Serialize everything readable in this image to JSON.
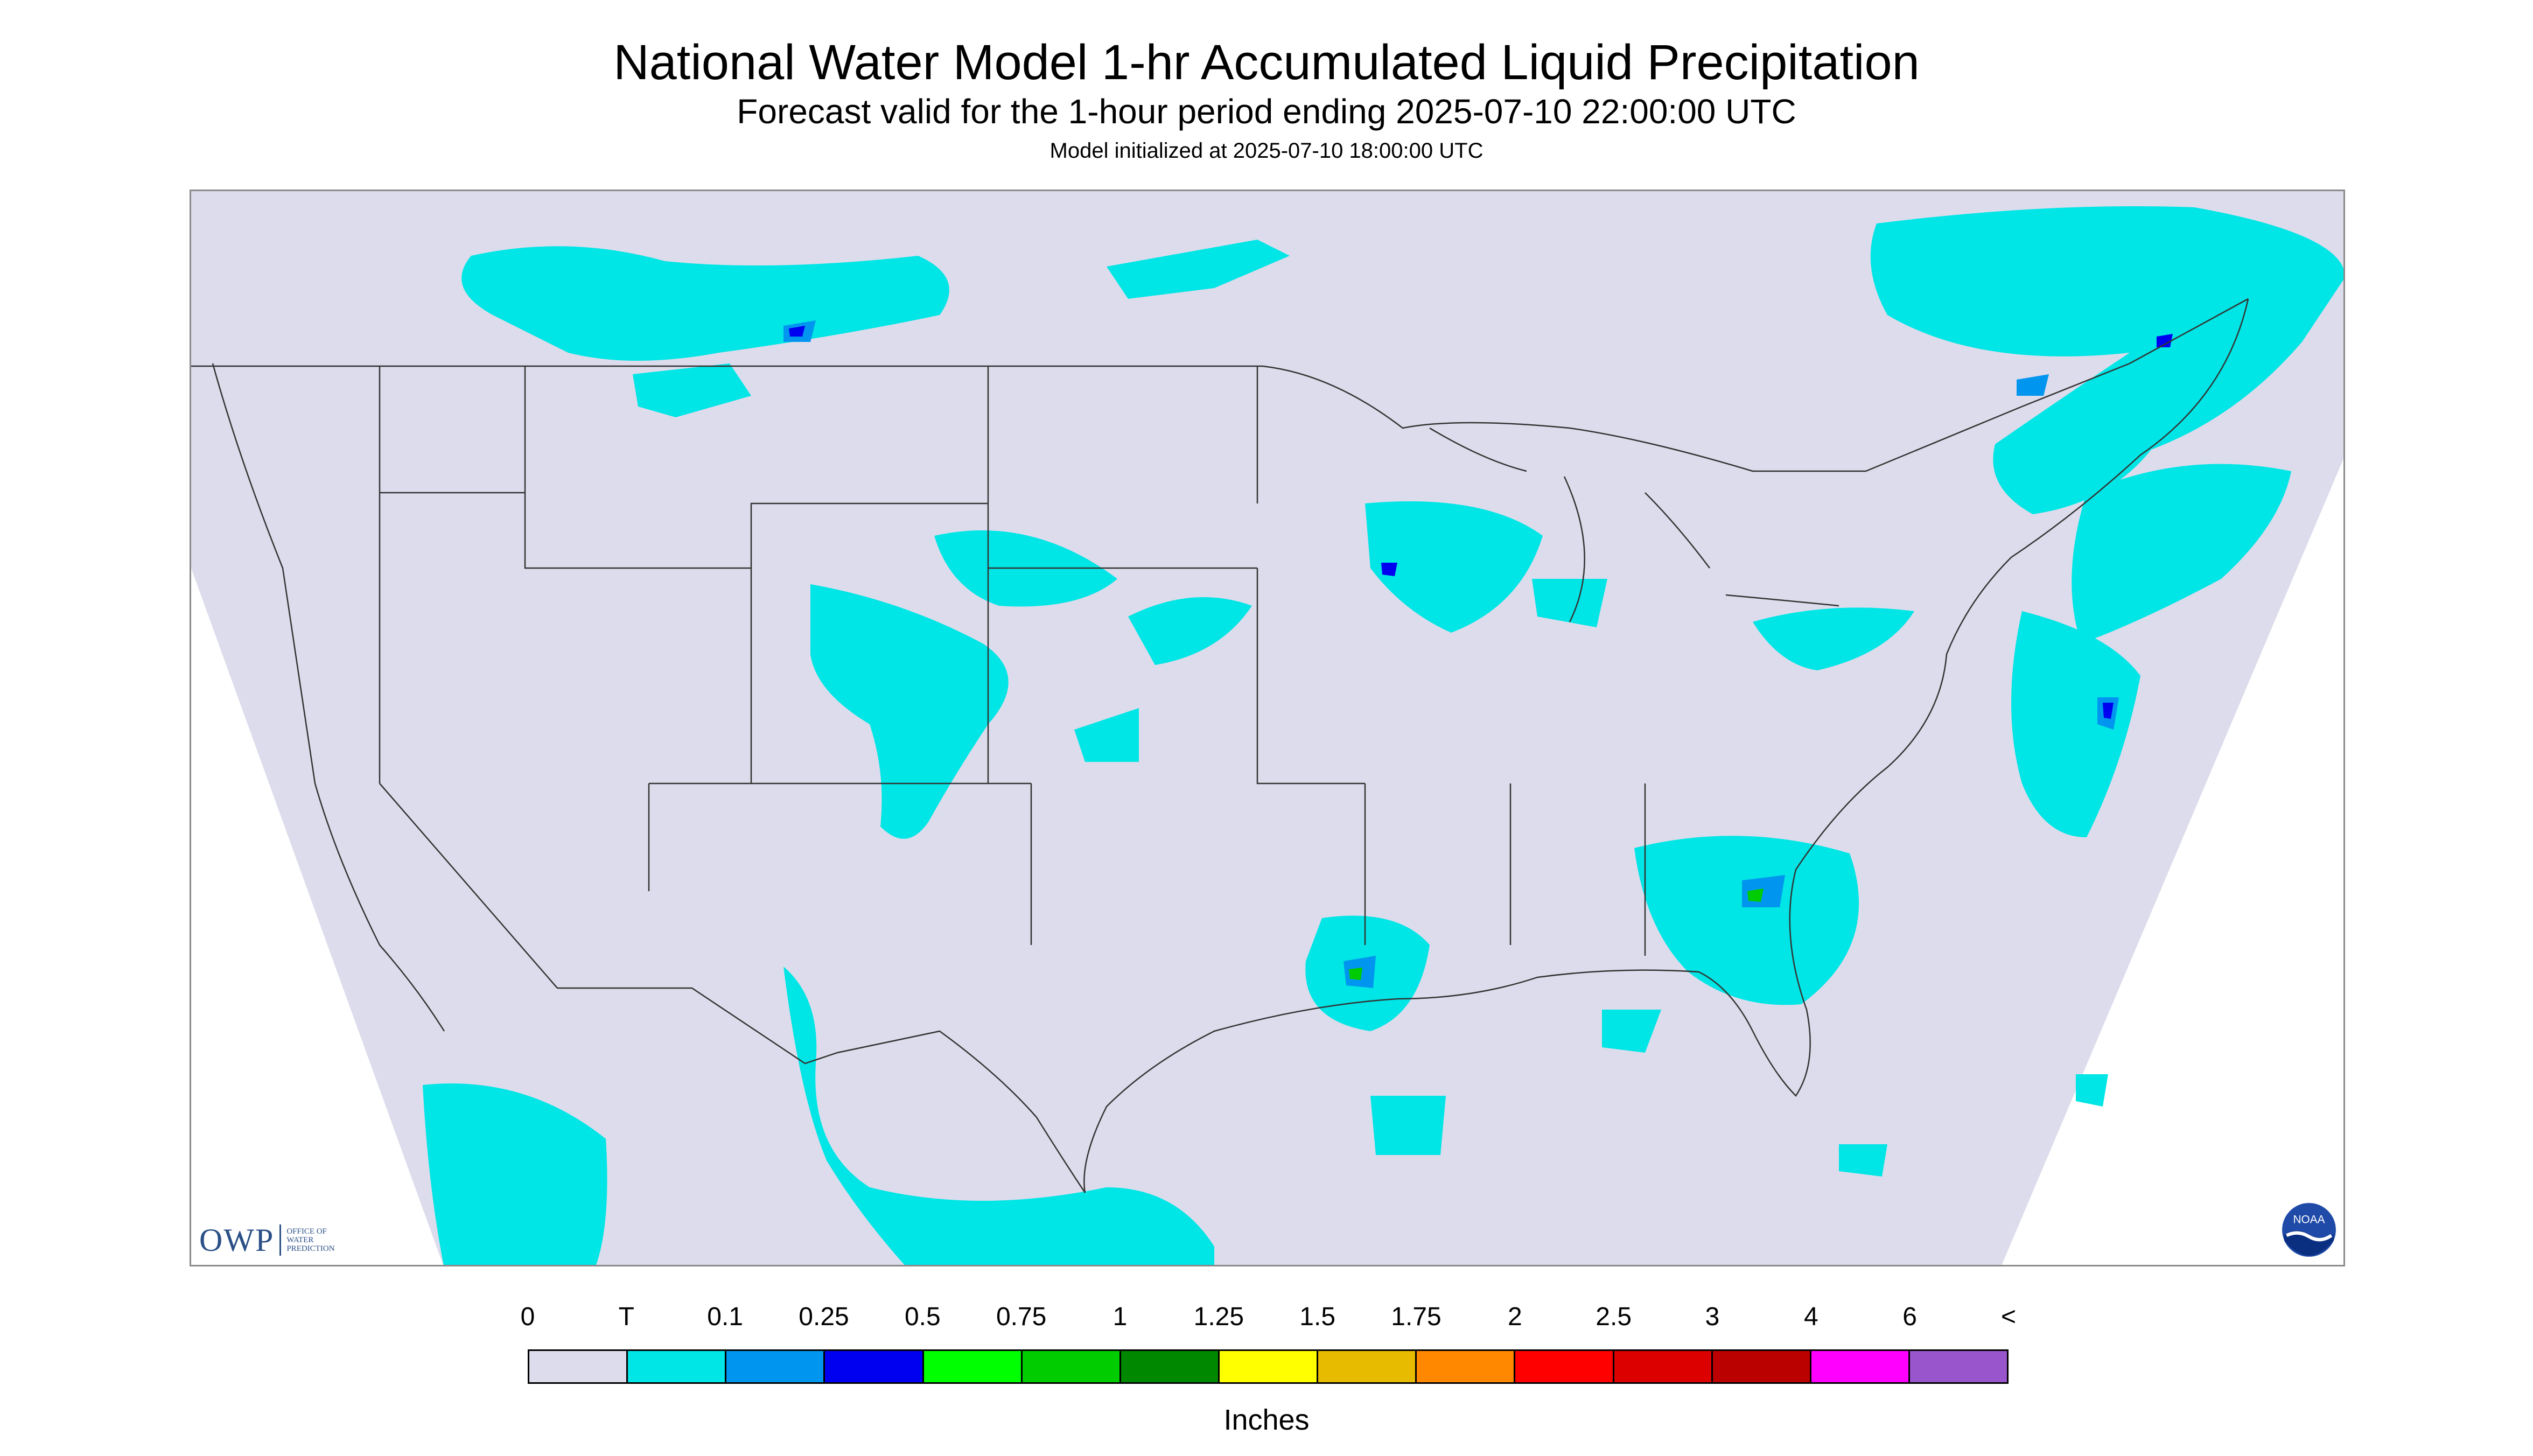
{
  "header": {
    "title": "National Water Model 1-hr Accumulated Liquid Precipitation",
    "subtitle": "Forecast valid for the 1-hour period ending 2025-07-10 22:00:00 UTC",
    "init": "Model initialized at 2025-07-10 18:00:00 UTC"
  },
  "logos": {
    "owp_mark": "OWP",
    "owp_lines": [
      "Office of",
      "Water",
      "Prediction"
    ],
    "noaa_text": "NOAA"
  },
  "legend": {
    "labels": [
      "0",
      "T",
      "0.1",
      "0.25",
      "0.5",
      "0.75",
      "1",
      "1.25",
      "1.5",
      "1.75",
      "2",
      "2.5",
      "3",
      "4",
      "6",
      "<"
    ],
    "colors": [
      "#dcdcec",
      "#00e5e5",
      "#0095ee",
      "#0000f0",
      "#00ff00",
      "#00cc00",
      "#008800",
      "#ffff00",
      "#e6bb00",
      "#ff8800",
      "#ff0000",
      "#dd0000",
      "#bb0000",
      "#ff00ff",
      "#9955cc"
    ],
    "units": "Inches"
  },
  "map": {
    "background": "#dcdcec",
    "light_precip_color": "#00e5e5",
    "moderate_precip_color": "#0095ee",
    "heavy_precip_color": "#0000f0",
    "peak_precip_color": "#00cc00",
    "offgrid_color": "#ffffff",
    "border_color": "#333333"
  }
}
